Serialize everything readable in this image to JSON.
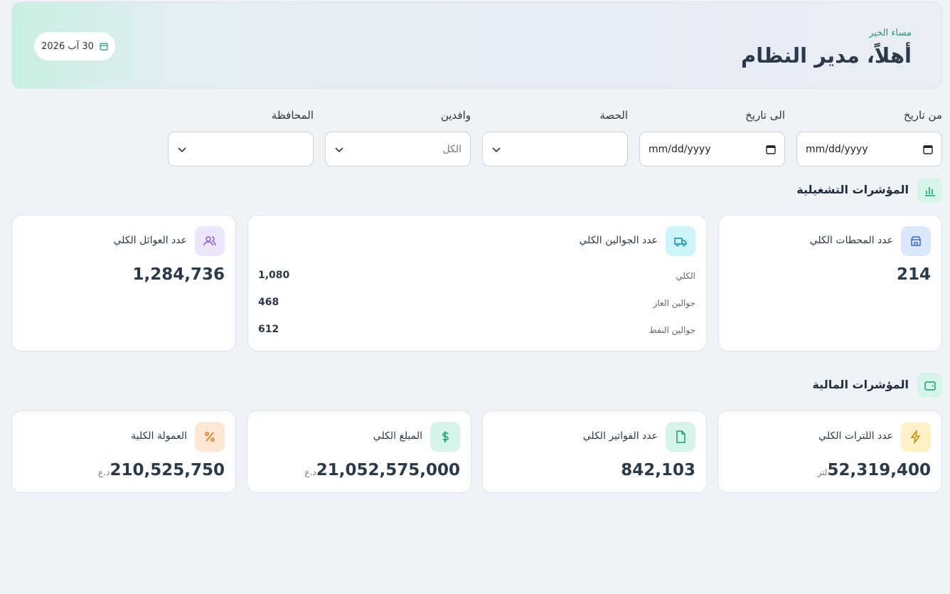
{
  "header": {
    "greeting": "مساء الخير",
    "title": "أهلاً، مدير النظام",
    "date": "30 آب 2026"
  },
  "filters": [
    {
      "label": "من تاريخ",
      "value": "mm/dd/yyyy"
    },
    {
      "label": "الى تاريخ",
      "value": "mm/dd/yyyy"
    },
    {
      "label": "الحصة"
    },
    {
      "label": "وافدين",
      "value": "الكل"
    },
    {
      "label": "المحافظة"
    }
  ],
  "operational": {
    "title": "المؤشرات التشغيلية",
    "cards": [
      {
        "title": "عدد المحطات الكلي",
        "value": "214"
      },
      {
        "title": "عدد الجوالين الكلي",
        "rows": [
          {
            "label": "الكلي",
            "value": "1,080"
          },
          {
            "label": "جوالين الغاز",
            "value": "468"
          },
          {
            "label": "جوالين النفط",
            "value": "612"
          }
        ]
      },
      {
        "title": "عدد العوائل الكلي",
        "value": "1,284,736"
      }
    ]
  },
  "financial": {
    "title": "المؤشرات المالية",
    "cards": [
      {
        "title": "عدد اللترات الكلي",
        "value": "52,319,400",
        "unit": "لتر"
      },
      {
        "title": "عدد الفواتير الكلي",
        "value": "842,103"
      },
      {
        "title": "المبلغ الكلي",
        "value": "21,052,575,000",
        "unit": "د.ع"
      },
      {
        "title": "العمولة الكلية",
        "value": "210,525,750",
        "unit": "د.ع"
      }
    ]
  }
}
